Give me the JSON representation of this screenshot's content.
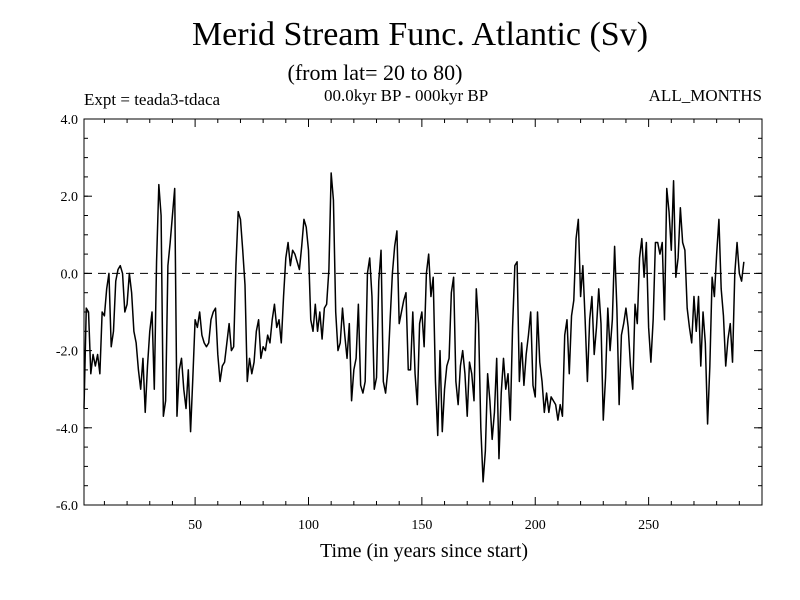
{
  "chart_data": {
    "type": "line",
    "title": "Merid Stream Func. Atlantic (Sv)",
    "subtitle": "(from lat= 20 to 80)",
    "experiment": "Expt = teada3-tdaca",
    "period": "00.0kyr BP - 000kyr BP",
    "months": "ALL_MONTHS",
    "xlabel": "Time (in years since start)",
    "ylabel": "",
    "xlim": [
      1,
      300
    ],
    "ylim": [
      -6.0,
      4.0
    ],
    "xticks": [
      50,
      100,
      150,
      200,
      250
    ],
    "yticks": [
      4.0,
      2.0,
      0.0,
      -2.0,
      -4.0,
      -6.0
    ],
    "ytick_labels": [
      "4.0",
      "2.0",
      "0.0",
      "-2.0",
      "-4.0",
      "-6.0"
    ],
    "reference_line": 0.0,
    "series": [
      {
        "name": "Merid Stream Func. Atlantic",
        "x_start": 1,
        "x_step": 1,
        "values": [
          -3.5,
          -0.9,
          -1.0,
          -2.6,
          -2.1,
          -2.4,
          -2.1,
          -2.6,
          -1.0,
          -1.1,
          -0.4,
          0.0,
          -1.9,
          -1.5,
          -0.2,
          0.1,
          0.2,
          0.0,
          -1.0,
          -0.8,
          0.0,
          -0.5,
          -1.5,
          -1.8,
          -2.5,
          -3.0,
          -2.2,
          -3.6,
          -2.4,
          -1.5,
          -1.0,
          -3.0,
          0.3,
          2.3,
          1.5,
          -3.7,
          -3.3,
          0.2,
          0.8,
          1.5,
          2.2,
          -3.7,
          -2.5,
          -2.2,
          -3.0,
          -3.5,
          -2.5,
          -4.1,
          -2.7,
          -1.2,
          -1.4,
          -1.0,
          -1.6,
          -1.8,
          -1.9,
          -1.8,
          -1.2,
          -1.0,
          -0.9,
          -2.1,
          -2.8,
          -2.4,
          -2.3,
          -1.8,
          -1.3,
          -2.0,
          -1.9,
          0.2,
          1.6,
          1.4,
          0.6,
          -0.3,
          -2.8,
          -2.2,
          -2.6,
          -2.3,
          -1.5,
          -1.2,
          -2.2,
          -1.9,
          -2.0,
          -1.6,
          -1.8,
          -1.2,
          -0.8,
          -1.4,
          -1.2,
          -1.8,
          -0.6,
          0.4,
          0.8,
          0.2,
          0.6,
          0.5,
          0.3,
          0.1,
          0.7,
          1.4,
          1.2,
          0.6,
          -1.2,
          -1.5,
          -0.8,
          -1.5,
          -1.0,
          -1.7,
          -0.9,
          -0.8,
          0.1,
          2.6,
          1.9,
          -1.0,
          -2.0,
          -1.8,
          -0.9,
          -1.6,
          -2.2,
          -1.3,
          -3.3,
          -2.5,
          -2.2,
          -0.8,
          -2.9,
          -3.1,
          -2.8,
          0.0,
          0.4,
          -0.6,
          -3.0,
          -2.7,
          -0.2,
          0.6,
          -2.8,
          -3.1,
          -2.5,
          -1.2,
          0.0,
          0.7,
          1.1,
          -1.3,
          -1.0,
          -0.7,
          -0.5,
          -2.5,
          -2.5,
          -1.0,
          -2.6,
          -3.4,
          -1.3,
          -1.0,
          -1.9,
          0.0,
          0.5,
          -0.6,
          -0.1,
          -2.8,
          -4.2,
          -2.0,
          -4.1,
          -3.0,
          -2.4,
          -2.2,
          -0.5,
          -0.1,
          -2.8,
          -3.4,
          -2.4,
          -2.0,
          -2.6,
          -3.7,
          -2.3,
          -2.6,
          -3.3,
          -0.4,
          -1.3,
          -4.0,
          -5.4,
          -4.6,
          -2.6,
          -3.3,
          -4.3,
          -3.6,
          -2.2,
          -4.8,
          -3.1,
          -2.2,
          -3.0,
          -2.6,
          -3.8,
          -1.4,
          0.2,
          0.3,
          -2.8,
          -1.8,
          -2.9,
          -2.1,
          -1.6,
          -1.0,
          -2.9,
          -3.2,
          -1.0,
          -2.3,
          -2.8,
          -3.6,
          -3.1,
          -3.6,
          -3.2,
          -3.3,
          -3.4,
          -3.8,
          -3.4,
          -3.7,
          -1.6,
          -1.2,
          -2.6,
          -1.1,
          -0.7,
          0.9,
          1.4,
          -0.6,
          0.2,
          -1.2,
          -2.8,
          -1.2,
          -0.6,
          -2.1,
          -1.4,
          -0.4,
          -1.3,
          -3.8,
          -2.7,
          -0.9,
          -2.0,
          -1.2,
          0.7,
          -0.9,
          -3.4,
          -1.6,
          -1.3,
          -0.9,
          -1.4,
          -2.4,
          -3.0,
          -0.8,
          -1.3,
          0.4,
          0.9,
          -0.1,
          0.8,
          -1.4,
          -2.3,
          -1.2,
          0.8,
          0.8,
          0.5,
          0.8,
          -1.2,
          2.2,
          1.6,
          0.6,
          2.4,
          -0.1,
          0.4,
          1.7,
          0.8,
          0.6,
          -0.9,
          -1.4,
          -1.8,
          -0.6,
          -1.5,
          -0.6,
          -2.4,
          -1.0,
          -1.8,
          -3.9,
          -2.4,
          -0.1,
          -0.6,
          0.5,
          1.4,
          -0.4,
          -1.1,
          -2.4,
          -1.7,
          -1.3,
          -2.3,
          0.0,
          0.8,
          0.0,
          -0.2,
          0.3
        ]
      }
    ]
  }
}
